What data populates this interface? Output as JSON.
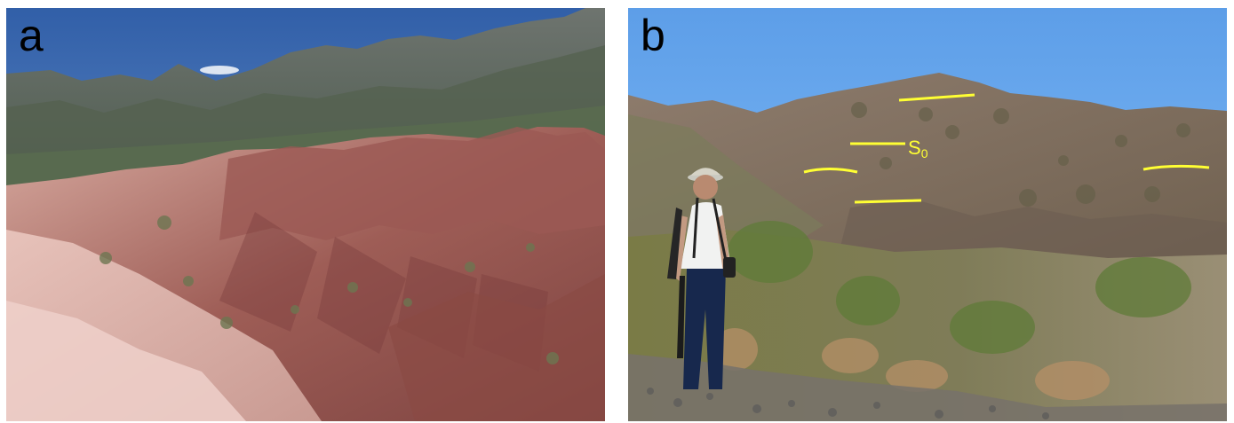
{
  "panels": [
    {
      "label": "a",
      "scene": "eroded-reddish-badlands-with-mountain-range"
    },
    {
      "label": "b",
      "scene": "hillside-with-bedding-lines-and-person-standing-in-scrub",
      "annotation": {
        "main": "S",
        "subscript": "0"
      },
      "bedding_line_color": "#ffff33",
      "bedding_line_count": 5
    }
  ],
  "colors": {
    "sky_a": "#5b86c8",
    "sky_b": "#78b2ef",
    "mountain": "#5e6b63",
    "badland": "#a86a62",
    "hill": "#8d7c6d",
    "scrub": "#7d7a4d"
  }
}
